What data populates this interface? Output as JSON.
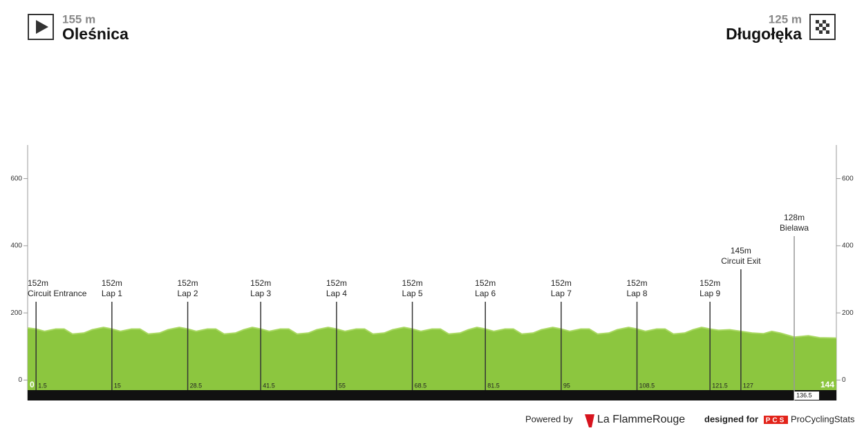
{
  "header": {
    "start": {
      "altitude": "155 m",
      "name": "Oleśnica"
    },
    "finish": {
      "altitude": "125 m",
      "name": "Długołęka"
    }
  },
  "chart_data": {
    "type": "area",
    "x": [
      0,
      1.5,
      3,
      5,
      6.5,
      8,
      10,
      11.5,
      13.5,
      15,
      16.5,
      18.5,
      20,
      21.5,
      23.5,
      25,
      27,
      28.5,
      30,
      32,
      33.5,
      35,
      37,
      38.5,
      40,
      41.5,
      43,
      45,
      46.5,
      48,
      50,
      51.5,
      53.5,
      55,
      56.5,
      58.5,
      60,
      61.5,
      63.5,
      65,
      67,
      68.5,
      70,
      72,
      73.5,
      75,
      77,
      78.5,
      80,
      81.5,
      83,
      85,
      86.5,
      88,
      90,
      91.5,
      93.5,
      95,
      96.5,
      98.5,
      100,
      101.5,
      103.5,
      105,
      107,
      108.5,
      110,
      112,
      113.5,
      115,
      117,
      118.5,
      120,
      121.5,
      123,
      125,
      127,
      129,
      131,
      132.5,
      134,
      136.5,
      139,
      141,
      144
    ],
    "values": [
      155,
      152,
      145,
      152,
      152,
      137,
      140,
      150,
      157,
      152,
      145,
      152,
      152,
      137,
      140,
      150,
      157,
      152,
      145,
      152,
      152,
      137,
      140,
      150,
      157,
      152,
      145,
      152,
      152,
      137,
      140,
      150,
      157,
      152,
      145,
      152,
      152,
      137,
      140,
      150,
      157,
      152,
      145,
      152,
      152,
      137,
      140,
      150,
      157,
      152,
      145,
      152,
      152,
      137,
      140,
      150,
      157,
      152,
      145,
      152,
      152,
      137,
      140,
      150,
      157,
      152,
      145,
      152,
      152,
      137,
      140,
      150,
      157,
      152,
      148,
      150,
      145,
      140,
      138,
      145,
      140,
      128,
      132,
      126,
      125
    ],
    "color": "#8cc63f",
    "xlim": [
      0,
      144
    ],
    "xticks": [
      0,
      144
    ],
    "ylim": [
      -30,
      700
    ],
    "yticks": [
      0,
      200,
      400,
      600
    ],
    "markers": [
      {
        "km": 1.5,
        "altitude": "152m",
        "name": "Circuit Entrance"
      },
      {
        "km": 15,
        "altitude": "152m",
        "name": "Lap 1"
      },
      {
        "km": 28.5,
        "altitude": "152m",
        "name": "Lap 2"
      },
      {
        "km": 41.5,
        "altitude": "152m",
        "name": "Lap 3"
      },
      {
        "km": 55,
        "altitude": "152m",
        "name": "Lap 4"
      },
      {
        "km": 68.5,
        "altitude": "152m",
        "name": "Lap 5"
      },
      {
        "km": 81.5,
        "altitude": "152m",
        "name": "Lap 6"
      },
      {
        "km": 95,
        "altitude": "152m",
        "name": "Lap 7"
      },
      {
        "km": 108.5,
        "altitude": "152m",
        "name": "Lap 8"
      },
      {
        "km": 121.5,
        "altitude": "152m",
        "name": "Lap 9"
      },
      {
        "km": 127,
        "altitude": "145m",
        "name": "Circuit Exit"
      },
      {
        "km": 136.5,
        "altitude": "128m",
        "name": "Bielawa"
      }
    ]
  },
  "footer": {
    "powered_by": "Powered by",
    "brand": "La FlammeRouge",
    "designed_for": "designed for",
    "pcs_logo": "PCS",
    "pcs_name": "ProCyclingStats"
  }
}
